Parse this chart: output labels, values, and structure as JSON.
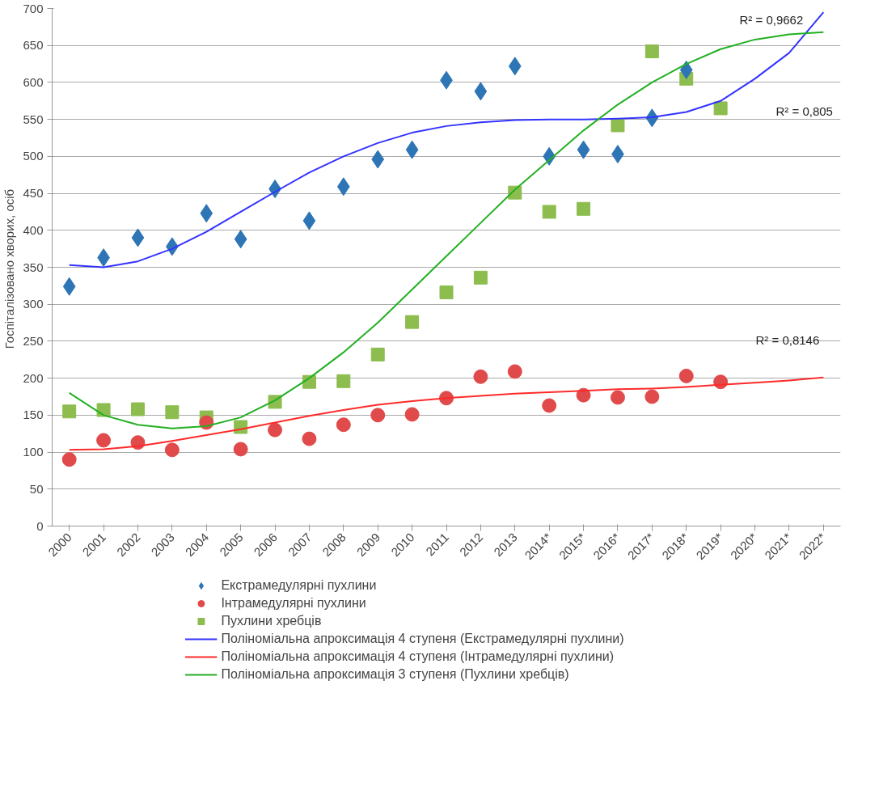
{
  "chart_data": {
    "type": "scatter",
    "ylabel": "Госпіталізовано хворих,  осіб",
    "categories": [
      "2000",
      "2001",
      "2002",
      "2003",
      "2004",
      "2005",
      "2006",
      "2007",
      "2008",
      "2009",
      "2010",
      "2011",
      "2012",
      "2013",
      "2014*",
      "2015*",
      "2016*",
      "2017*",
      "2018*",
      "2019*",
      "2020*",
      "2021*",
      "2022*"
    ],
    "ylim": [
      0,
      700
    ],
    "yticks": [
      0,
      50,
      100,
      150,
      200,
      250,
      300,
      350,
      400,
      450,
      500,
      550,
      600,
      650,
      700
    ],
    "grid": "y",
    "legend": "bottom",
    "series": [
      {
        "name": "Екстрамедулярні пухлини",
        "marker": "diamond",
        "color": "#2e75b6",
        "values": [
          324,
          363,
          390,
          378,
          423,
          388,
          456,
          413,
          459,
          496,
          509,
          603,
          588,
          622,
          500,
          509,
          503,
          552,
          617,
          null,
          null,
          null,
          null
        ]
      },
      {
        "name": "Інтрамедулярні пухлини",
        "marker": "circle",
        "color": "#e04a4a",
        "values": [
          90,
          116,
          113,
          103,
          140,
          104,
          130,
          118,
          137,
          150,
          151,
          173,
          202,
          209,
          163,
          177,
          174,
          175,
          203,
          195,
          null,
          null,
          null
        ]
      },
      {
        "name": "Пухлини хребців",
        "marker": "square",
        "color": "#8dbd4f",
        "values": [
          155,
          157,
          158,
          154,
          147,
          134,
          168,
          195,
          196,
          232,
          276,
          316,
          336,
          451,
          425,
          429,
          542,
          642,
          605,
          565,
          null,
          null,
          null
        ]
      },
      {
        "name": "Поліноміальна апроксимація 4 ступеня (Екстрамедулярні пухлини)",
        "type": "line",
        "line_style": "solid",
        "color": "#3333ff",
        "values": [
          353,
          350,
          358,
          375,
          398,
          425,
          452,
          478,
          500,
          518,
          532,
          541,
          546,
          549,
          550,
          550,
          551,
          553,
          560,
          575,
          605,
          640,
          695
        ]
      },
      {
        "name": "Поліноміальна апроксимація 4 ступеня (Інтрамедулярні пухлини)",
        "type": "line",
        "line_style": "solid",
        "color": "#ff2a2a",
        "values": [
          103,
          104,
          108,
          115,
          123,
          131,
          140,
          149,
          157,
          164,
          169,
          173,
          176,
          179,
          181,
          183,
          185,
          186,
          188,
          191,
          194,
          197,
          201
        ]
      },
      {
        "name": "Поліноміальна апроксимація 3 ступеня (Пухлини хребців)",
        "type": "line",
        "line_style": "solid",
        "color": "#22b022",
        "values": [
          180,
          150,
          137,
          132,
          135,
          147,
          170,
          200,
          235,
          275,
          320,
          365,
          410,
          455,
          495,
          535,
          570,
          600,
          625,
          645,
          658,
          665,
          668
        ]
      }
    ],
    "annotations": [
      "R² = 0,9662",
      "R² = 0,805",
      "R² = 0,8146"
    ]
  }
}
